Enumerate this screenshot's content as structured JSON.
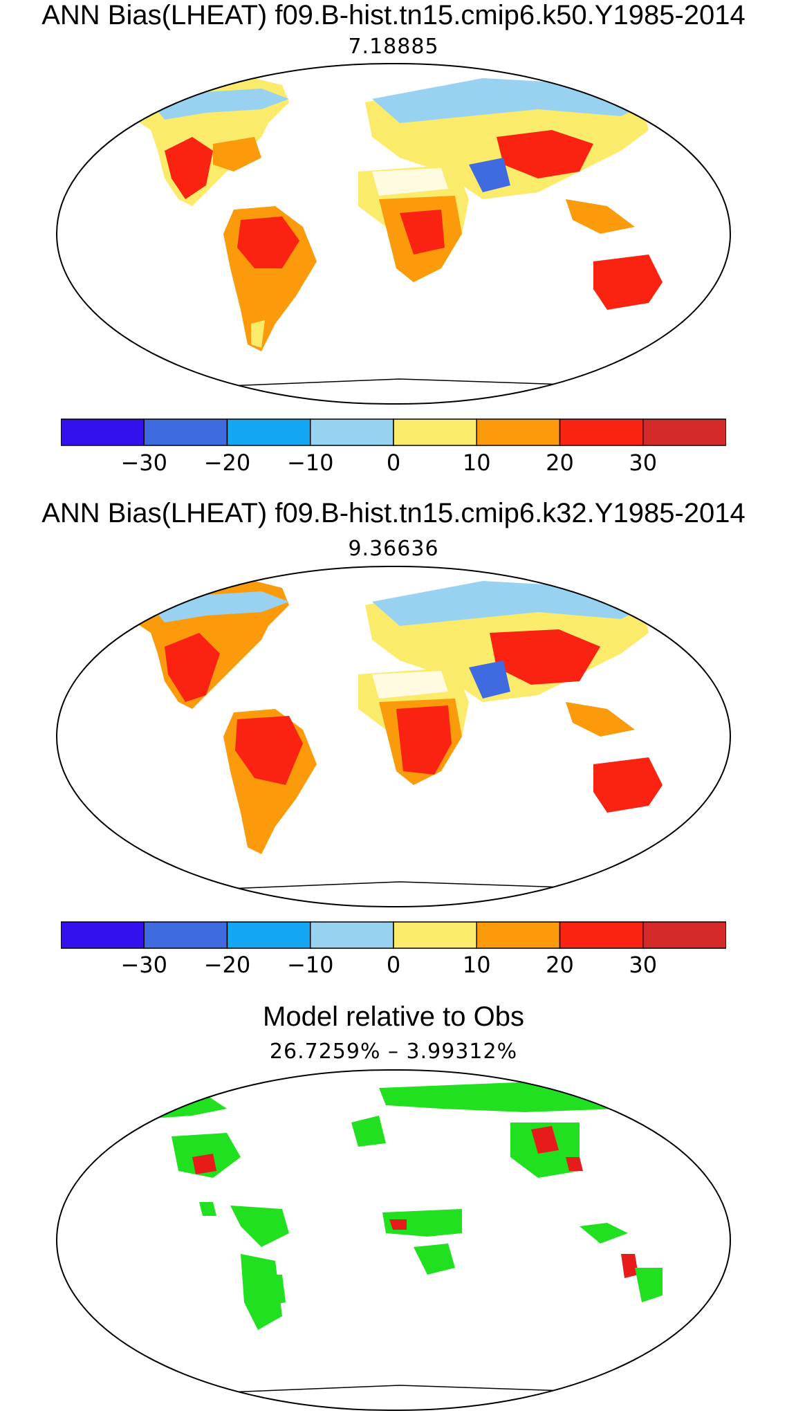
{
  "panels": [
    {
      "title": "ANN Bias(LHEAT) f09.B-hist.tn15.cmip6.k50.Y1985-2014",
      "subtitle": "7.18885"
    },
    {
      "title": "ANN Bias(LHEAT) f09.B-hist.tn15.cmip6.k32.Y1985-2014",
      "subtitle": "9.36636"
    },
    {
      "title": "Model relative to Obs",
      "subtitle": "26.7259% – 3.99312%"
    }
  ],
  "colorbar": {
    "colors": [
      "#3311ee",
      "#3f6ae0",
      "#12a6f3",
      "#98d2f0",
      "#fbeb6b",
      "#fb9a0a",
      "#fa2211",
      "#d42a2a"
    ],
    "tick_labels": [
      "−30",
      "−20",
      "−10",
      "0",
      "10",
      "20",
      "30"
    ]
  },
  "comparison_colors": {
    "improved": "#20e020",
    "worse": "#e81b1b"
  }
}
